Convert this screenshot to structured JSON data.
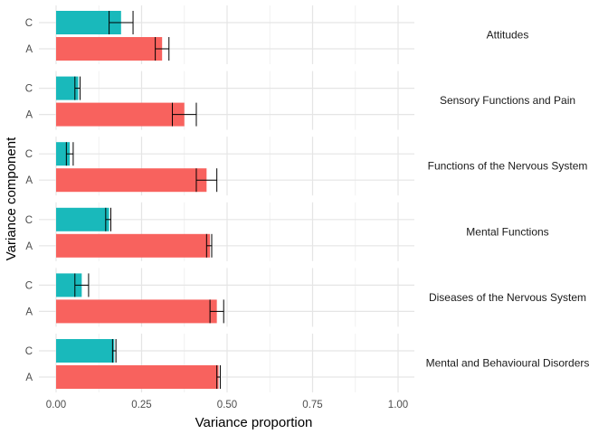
{
  "chart_data": {
    "type": "bar",
    "orientation": "horizontal",
    "facet_layout": "rows, labels on right",
    "xlabel": "Variance proportion",
    "ylabel": "Variance component",
    "xlim": [
      0,
      1.05
    ],
    "x_ticks": [
      0,
      0.25,
      0.5,
      0.75,
      1
    ],
    "x_tick_labels": [
      "0.00",
      "0.25",
      "0.50",
      "0.75",
      "1.00"
    ],
    "categories": [
      "C",
      "A"
    ],
    "colors": {
      "A": "#f8625e",
      "C": "#19b9bb"
    },
    "grid": true,
    "legend": "none",
    "facets": [
      {
        "label": "Attitudes",
        "bars": [
          {
            "component": "C",
            "value": 0.19,
            "ci": [
              0.155,
              0.225
            ]
          },
          {
            "component": "A",
            "value": 0.31,
            "ci": [
              0.29,
              0.33
            ]
          }
        ]
      },
      {
        "label": "Sensory Functions and Pain",
        "bars": [
          {
            "component": "C",
            "value": 0.065,
            "ci": [
              0.055,
              0.07
            ]
          },
          {
            "component": "A",
            "value": 0.375,
            "ci": [
              0.34,
              0.41
            ]
          }
        ]
      },
      {
        "label": "Functions of the Nervous System",
        "bars": [
          {
            "component": "C",
            "value": 0.04,
            "ci": [
              0.03,
              0.05
            ]
          },
          {
            "component": "A",
            "value": 0.44,
            "ci": [
              0.41,
              0.47
            ]
          }
        ]
      },
      {
        "label": "Mental Functions",
        "bars": [
          {
            "component": "C",
            "value": 0.155,
            "ci": [
              0.145,
              0.16
            ]
          },
          {
            "component": "A",
            "value": 0.45,
            "ci": [
              0.44,
              0.455
            ]
          }
        ]
      },
      {
        "label": "Diseases of the Nervous System",
        "bars": [
          {
            "component": "C",
            "value": 0.075,
            "ci": [
              0.055,
              0.095
            ]
          },
          {
            "component": "A",
            "value": 0.47,
            "ci": [
              0.45,
              0.49
            ]
          }
        ]
      },
      {
        "label": "Mental and Behavioural Disorders",
        "bars": [
          {
            "component": "C",
            "value": 0.17,
            "ci": [
              0.165,
              0.175
            ]
          },
          {
            "component": "A",
            "value": 0.475,
            "ci": [
              0.47,
              0.48
            ]
          }
        ]
      }
    ]
  }
}
